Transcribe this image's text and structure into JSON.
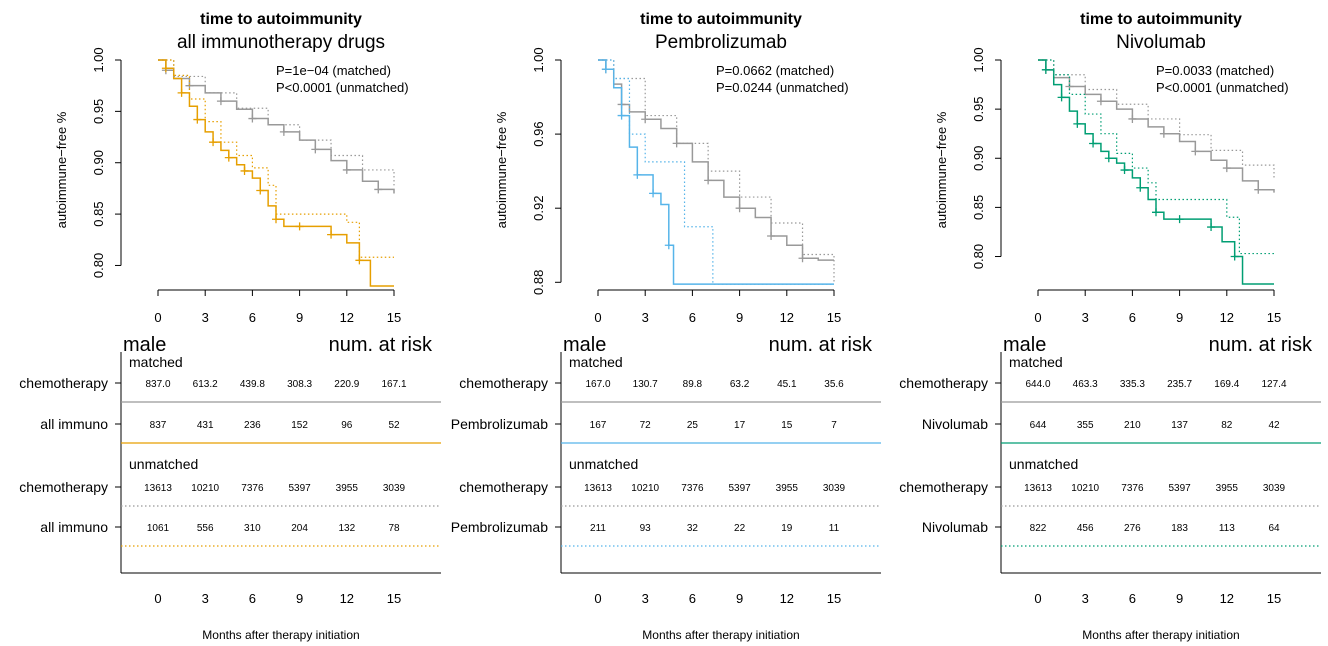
{
  "figure": {
    "xlabel": "Months after therapy initiation",
    "ylabel": "autoimmune−free %",
    "label_male": "male",
    "label_num_at_risk": "num. at risk",
    "label_matched": "matched",
    "label_unmatched": "unmatched",
    "colors": {
      "chemo": "#999999",
      "all": "#E69F00",
      "pembro": "#56B4E9",
      "nivo": "#009E73"
    }
  },
  "chart_data": [
    {
      "type": "line",
      "title": "time to autoimmunity",
      "subtitle": "all immunotherapy drugs",
      "pvalue_matched": "P=1e−04 (matched)",
      "pvalue_unmatched": "P<0.0001 (unmatched)",
      "xlabel": "Months after therapy initiation",
      "ylabel": "autoimmune−free %",
      "xlim": [
        0,
        15
      ],
      "ylim": [
        0.78,
        1.0
      ],
      "xticks": [
        "0",
        "3",
        "6",
        "9",
        "12",
        "15"
      ],
      "yticks": [
        "0.80",
        "0.85",
        "0.90",
        "0.95",
        "1.00"
      ],
      "series": [
        {
          "name": "chemotherapy",
          "style": "matched",
          "color": "#999999",
          "x": [
            0,
            0.5,
            1,
            2,
            3,
            4,
            5,
            6,
            7,
            8,
            9,
            10,
            11,
            12,
            13,
            14,
            15
          ],
          "y": [
            1.0,
            0.99,
            0.982,
            0.975,
            0.968,
            0.96,
            0.952,
            0.943,
            0.937,
            0.93,
            0.922,
            0.913,
            0.902,
            0.893,
            0.882,
            0.874,
            0.87
          ]
        },
        {
          "name": "all immuno",
          "style": "matched",
          "color": "#E69F00",
          "x": [
            0,
            0.5,
            1,
            1.5,
            2,
            2.5,
            3,
            3.5,
            4,
            4.5,
            5,
            5.5,
            6,
            6.5,
            7,
            7.5,
            8,
            9,
            10,
            11,
            12,
            12.8,
            13.5,
            15
          ],
          "y": [
            1.0,
            0.992,
            0.982,
            0.968,
            0.955,
            0.942,
            0.93,
            0.92,
            0.912,
            0.905,
            0.898,
            0.892,
            0.885,
            0.873,
            0.858,
            0.845,
            0.838,
            0.838,
            0.838,
            0.83,
            0.822,
            0.805,
            0.78,
            0.78
          ]
        },
        {
          "name": "chemotherapy",
          "style": "unmatched",
          "color": "#999999",
          "x": [
            0,
            1,
            3,
            5,
            7,
            9,
            11,
            13,
            15
          ],
          "y": [
            1.0,
            0.984,
            0.968,
            0.953,
            0.937,
            0.922,
            0.907,
            0.893,
            0.878
          ]
        },
        {
          "name": "all immuno",
          "style": "unmatched",
          "color": "#E69F00",
          "x": [
            0,
            1,
            2,
            3,
            4,
            5,
            6,
            7,
            7.5,
            9,
            11,
            12,
            12.8,
            15
          ],
          "y": [
            1.0,
            0.985,
            0.962,
            0.94,
            0.92,
            0.907,
            0.895,
            0.878,
            0.85,
            0.85,
            0.85,
            0.842,
            0.808,
            0.808
          ]
        }
      ]
    },
    {
      "type": "line",
      "title": "time to autoimmunity",
      "subtitle": "Pembrolizumab",
      "pvalue_matched": "P=0.0662 (matched)",
      "pvalue_unmatched": "P=0.0244 (unmatched)",
      "xlabel": "Months after therapy initiation",
      "ylabel": "autoimmune−free %",
      "xlim": [
        0,
        15
      ],
      "ylim": [
        0.878,
        1.0
      ],
      "xticks": [
        "0",
        "3",
        "6",
        "9",
        "12",
        "15"
      ],
      "yticks": [
        "0.88",
        "0.92",
        "0.96",
        "1.00"
      ],
      "series": [
        {
          "name": "chemotherapy",
          "style": "matched",
          "color": "#999999",
          "x": [
            0,
            0.5,
            1,
            1.5,
            2,
            3,
            4,
            5,
            6,
            7,
            8,
            9,
            10,
            11,
            12,
            13,
            14,
            15
          ],
          "y": [
            1.0,
            0.995,
            0.987,
            0.976,
            0.972,
            0.968,
            0.963,
            0.955,
            0.945,
            0.935,
            0.926,
            0.92,
            0.915,
            0.905,
            0.9,
            0.893,
            0.892,
            0.892
          ]
        },
        {
          "name": "Pembrolizumab",
          "style": "matched",
          "color": "#56B4E9",
          "x": [
            0,
            0.5,
            1,
            1.5,
            2,
            2.5,
            3,
            3.5,
            4,
            4.5,
            4.8,
            15
          ],
          "y": [
            1.0,
            0.995,
            0.985,
            0.97,
            0.953,
            0.938,
            0.938,
            0.928,
            0.922,
            0.9,
            0.879,
            0.879
          ]
        },
        {
          "name": "chemotherapy",
          "style": "unmatched",
          "color": "#999999",
          "x": [
            0,
            1,
            3,
            5,
            7,
            9,
            11,
            13,
            15
          ],
          "y": [
            1.0,
            0.99,
            0.97,
            0.955,
            0.94,
            0.926,
            0.912,
            0.895,
            0.88
          ]
        },
        {
          "name": "Pembrolizumab",
          "style": "unmatched",
          "color": "#56B4E9",
          "x": [
            0,
            1,
            2,
            3,
            4,
            5,
            5.5,
            7.3,
            7.3,
            15
          ],
          "y": [
            1.0,
            0.99,
            0.96,
            0.945,
            0.945,
            0.945,
            0.91,
            0.91,
            0.879,
            0.879
          ]
        }
      ]
    },
    {
      "type": "line",
      "title": "time to autoimmunity",
      "subtitle": "Nivolumab",
      "pvalue_matched": "P=0.0033 (matched)",
      "pvalue_unmatched": "P<0.0001 (unmatched)",
      "xlabel": "Months after therapy initiation",
      "ylabel": "autoimmune−free %",
      "xlim": [
        0,
        15
      ],
      "ylim": [
        0.77,
        1.0
      ],
      "xticks": [
        "0",
        "3",
        "6",
        "9",
        "12",
        "15"
      ],
      "yticks": [
        "0.80",
        "0.85",
        "0.90",
        "0.95",
        "1.00"
      ],
      "series": [
        {
          "name": "chemotherapy",
          "style": "matched",
          "color": "#999999",
          "x": [
            0,
            0.5,
            1,
            2,
            3,
            4,
            5,
            6,
            7,
            8,
            9,
            10,
            11,
            12,
            13,
            14,
            15
          ],
          "y": [
            1.0,
            0.99,
            0.982,
            0.973,
            0.965,
            0.958,
            0.95,
            0.94,
            0.932,
            0.925,
            0.917,
            0.907,
            0.898,
            0.89,
            0.877,
            0.868,
            0.865
          ]
        },
        {
          "name": "Nivolumab",
          "style": "matched",
          "color": "#009E73",
          "x": [
            0,
            0.5,
            1,
            1.5,
            2,
            2.5,
            3,
            3.5,
            4,
            4.5,
            5,
            5.5,
            6,
            6.5,
            7,
            7.5,
            8,
            9,
            10,
            11,
            11.7,
            12.5,
            13,
            15
          ],
          "y": [
            1.0,
            0.99,
            0.975,
            0.962,
            0.948,
            0.935,
            0.925,
            0.915,
            0.907,
            0.9,
            0.895,
            0.888,
            0.88,
            0.87,
            0.858,
            0.845,
            0.838,
            0.838,
            0.838,
            0.83,
            0.815,
            0.8,
            0.772,
            0.772
          ]
        },
        {
          "name": "chemotherapy",
          "style": "unmatched",
          "color": "#999999",
          "x": [
            0,
            1,
            3,
            5,
            7,
            9,
            11,
            13,
            15
          ],
          "y": [
            1.0,
            0.985,
            0.97,
            0.955,
            0.94,
            0.924,
            0.908,
            0.893,
            0.878
          ]
        },
        {
          "name": "Nivolumab",
          "style": "unmatched",
          "color": "#009E73",
          "x": [
            0,
            1,
            2,
            3,
            4,
            5,
            6,
            7,
            7.5,
            9,
            11,
            12,
            12.8,
            15
          ],
          "y": [
            1.0,
            0.985,
            0.965,
            0.945,
            0.925,
            0.905,
            0.89,
            0.875,
            0.858,
            0.858,
            0.858,
            0.84,
            0.803,
            0.803
          ]
        }
      ]
    }
  ],
  "risk_tables": [
    {
      "rows": [
        {
          "group": "matched",
          "label": "chemotherapy",
          "values": [
            "837.0",
            "613.2",
            "439.8",
            "308.3",
            "220.9",
            "167.1"
          ],
          "color": "#999999",
          "line": "solid"
        },
        {
          "group": "matched",
          "label": "all immuno",
          "values": [
            "837",
            "431",
            "236",
            "152",
            "96",
            "52"
          ],
          "color": "#E69F00",
          "line": "solid"
        },
        {
          "group": "unmatched",
          "label": "chemotherapy",
          "values": [
            "13613",
            "10210",
            "7376",
            "5397",
            "3955",
            "3039"
          ],
          "color": "#999999",
          "line": "dotted"
        },
        {
          "group": "unmatched",
          "label": "all immuno",
          "values": [
            "1061",
            "556",
            "310",
            "204",
            "132",
            "78"
          ],
          "color": "#E69F00",
          "line": "dotted"
        }
      ]
    },
    {
      "rows": [
        {
          "group": "matched",
          "label": "chemotherapy",
          "values": [
            "167.0",
            "130.7",
            "89.8",
            "63.2",
            "45.1",
            "35.6"
          ],
          "color": "#999999",
          "line": "solid"
        },
        {
          "group": "matched",
          "label": "Pembrolizumab",
          "values": [
            "167",
            "72",
            "25",
            "17",
            "15",
            "7"
          ],
          "color": "#56B4E9",
          "line": "solid"
        },
        {
          "group": "unmatched",
          "label": "chemotherapy",
          "values": [
            "13613",
            "10210",
            "7376",
            "5397",
            "3955",
            "3039"
          ],
          "color": "#999999",
          "line": "dotted"
        },
        {
          "group": "unmatched",
          "label": "Pembrolizumab",
          "values": [
            "211",
            "93",
            "32",
            "22",
            "19",
            "11"
          ],
          "color": "#56B4E9",
          "line": "dotted"
        }
      ]
    },
    {
      "rows": [
        {
          "group": "matched",
          "label": "chemotherapy",
          "values": [
            "644.0",
            "463.3",
            "335.3",
            "235.7",
            "169.4",
            "127.4"
          ],
          "color": "#999999",
          "line": "solid"
        },
        {
          "group": "matched",
          "label": "Nivolumab",
          "values": [
            "644",
            "355",
            "210",
            "137",
            "82",
            "42"
          ],
          "color": "#009E73",
          "line": "solid"
        },
        {
          "group": "unmatched",
          "label": "chemotherapy",
          "values": [
            "13613",
            "10210",
            "7376",
            "5397",
            "3955",
            "3039"
          ],
          "color": "#999999",
          "line": "dotted"
        },
        {
          "group": "unmatched",
          "label": "Nivolumab",
          "values": [
            "822",
            "456",
            "276",
            "183",
            "113",
            "64"
          ],
          "color": "#009E73",
          "line": "dotted"
        }
      ]
    }
  ]
}
